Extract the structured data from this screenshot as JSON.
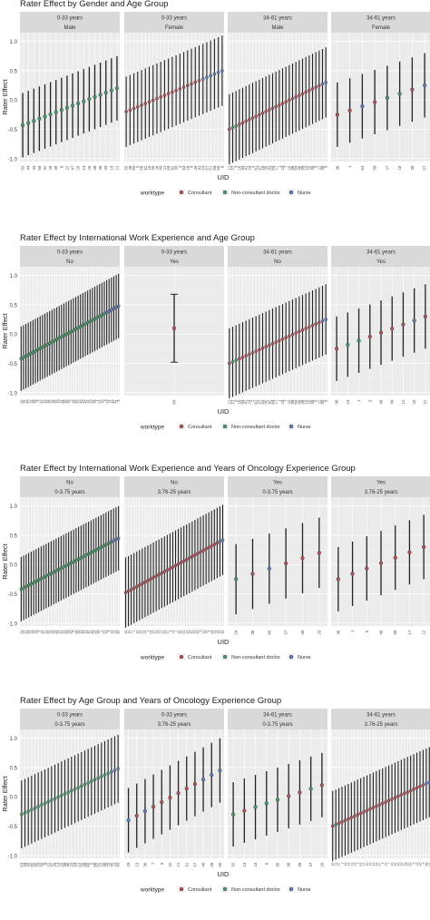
{
  "legend": {
    "title": "worktype",
    "items": [
      {
        "label": "Consultant",
        "color": "#b5525c"
      },
      {
        "label": "Non-consultant doctor",
        "color": "#4a9a6b"
      },
      {
        "label": "Nurse",
        "color": "#5f7fba"
      }
    ]
  },
  "chart_data": [
    {
      "type": "scatter",
      "title": "Rater Effect by Gender and Age Group",
      "xlabel": "UID",
      "ylabel": "Rater Effect",
      "ylim": [
        -1.05,
        1.15
      ],
      "yticks": [
        -1.0,
        -0.5,
        0.0,
        0.5,
        1.0
      ],
      "grid": true,
      "legend_position": "bottom",
      "panels": [
        {
          "strip": [
            "0-33 years",
            "Male"
          ],
          "n": 18,
          "y0": -0.43,
          "y1": 0.2,
          "halfwidth": 0.55,
          "colors": "nnnnnnnnnnnnnnnnnn",
          "ticks": [
            "53",
            "44",
            "43",
            "65",
            "32",
            "28",
            "39",
            "6",
            "22",
            "47",
            "29",
            "14",
            "25",
            "38",
            "46",
            "33",
            "19",
            "21"
          ]
        },
        {
          "strip": [
            "0-33 years",
            "Female"
          ],
          "n": 26,
          "y0": -0.2,
          "y1": 0.5,
          "halfwidth": 0.6,
          "colors": "ccccccccccccccccccccbbbbbb",
          "ticks": [
            "55",
            "48",
            "60",
            "5",
            "56",
            "52",
            "15",
            "45",
            "26",
            "40",
            "11",
            "59",
            "62",
            "30",
            "4",
            "63",
            "18",
            "9",
            "49",
            "31",
            "13",
            "57",
            "51",
            "58",
            "50",
            "8"
          ]
        },
        {
          "strip": [
            "34-61 years",
            "Male"
          ],
          "n": 30,
          "y0": -0.5,
          "y1": 0.3,
          "halfwidth": 0.6,
          "colors": "cnncccccccccccccccccccccccccbb",
          "ticks": [
            "12",
            "27",
            "3",
            "16",
            "34",
            "41",
            "24",
            "2",
            "61",
            "37",
            "10",
            "35",
            "42",
            "54",
            "17",
            "1",
            "23",
            "7",
            "20",
            "36",
            "64",
            "46",
            "39",
            "19",
            "25",
            "45",
            "5",
            "11",
            "30",
            "8"
          ]
        },
        {
          "strip": [
            "34-61 years",
            "Female"
          ],
          "n": 8,
          "y0": -0.25,
          "y1": 0.25,
          "halfwidth": 0.55,
          "colors": "ccbcnncb",
          "ticks": [
            "36",
            "1",
            "64",
            "58",
            "27",
            "18",
            "48",
            "57"
          ]
        }
      ]
    },
    {
      "type": "scatter",
      "title": "Rater Effect by International Work Experience and Age Group",
      "xlabel": "UID",
      "ylabel": "Rater Effect",
      "ylim": [
        -1.05,
        1.15
      ],
      "yticks": [
        -1.0,
        -0.5,
        0.0,
        0.5,
        1.0
      ],
      "grid": true,
      "legend_position": "bottom",
      "panels": [
        {
          "strip": [
            "0-33 years",
            "No"
          ],
          "n": 42,
          "y0": -0.42,
          "y1": 0.48,
          "halfwidth": 0.55,
          "colors": "nnnnnnnnnnnnnnnnnnnnnnnnnnnnnnnnnnnnbbbbbb",
          "ticks": [
            "53",
            "44",
            "43",
            "65",
            "32",
            "28",
            "39",
            "6",
            "22",
            "47",
            "29",
            "14",
            "25",
            "38",
            "46",
            "33",
            "19",
            "21",
            "55",
            "48",
            "60",
            "5",
            "56",
            "52",
            "15",
            "45",
            "26",
            "40",
            "11",
            "59",
            "62",
            "30",
            "4",
            "63",
            "18",
            "9",
            "49",
            "31",
            "13",
            "57",
            "51",
            "8"
          ]
        },
        {
          "strip": [
            "0-33 years",
            "Yes"
          ],
          "n": 1,
          "y0": 0.1,
          "y1": 0.1,
          "halfwidth": 0.58,
          "colors": "c",
          "ticks": [
            "65"
          ]
        },
        {
          "strip": [
            "34-61 years",
            "No"
          ],
          "n": 30,
          "y0": -0.5,
          "y1": 0.25,
          "halfwidth": 0.6,
          "colors": "cnncccccccccccccccccccccccccbb",
          "ticks": [
            "12",
            "27",
            "3",
            "16",
            "34",
            "41",
            "24",
            "2",
            "61",
            "37",
            "10",
            "35",
            "42",
            "54",
            "17",
            "1",
            "23",
            "7",
            "20",
            "36",
            "64",
            "46",
            "39",
            "19",
            "25",
            "45",
            "5",
            "11",
            "30",
            "8"
          ]
        },
        {
          "strip": [
            "34-61 years",
            "Yes"
          ],
          "n": 9,
          "y0": -0.25,
          "y1": 0.3,
          "halfwidth": 0.55,
          "colors": "cnnccccbc",
          "ticks": [
            "36",
            "24",
            "1",
            "3",
            "48",
            "39",
            "12",
            "20",
            "37"
          ]
        }
      ]
    },
    {
      "type": "scatter",
      "title": "Rater Effect by International Work Experience and Years of Oncology Experience Group",
      "xlabel": "UID",
      "ylabel": "Rater Effect",
      "ylim": [
        -1.05,
        1.15
      ],
      "yticks": [
        -1.0,
        -0.5,
        0.0,
        0.5,
        1.0
      ],
      "grid": true,
      "legend_position": "bottom",
      "panels": [
        {
          "strip": [
            "No",
            "0-3.75 years"
          ],
          "n": 40,
          "y0": -0.42,
          "y1": 0.45,
          "halfwidth": 0.55,
          "colors": "nnnnnnnnnnnnnnnnnnnnnnnnnnnnnnnnnnnnbbbb",
          "ticks": [
            "53",
            "44",
            "43",
            "65",
            "32",
            "28",
            "39",
            "6",
            "22",
            "47",
            "29",
            "14",
            "25",
            "38",
            "46",
            "33",
            "19",
            "21",
            "55",
            "48",
            "60",
            "5",
            "56",
            "52",
            "15",
            "45",
            "26",
            "40",
            "11",
            "59",
            "62",
            "30",
            "4",
            "63",
            "18",
            "9",
            "49",
            "31",
            "13",
            "57"
          ]
        },
        {
          "strip": [
            "No",
            "3.76-25 years"
          ],
          "n": 36,
          "y0": -0.48,
          "y1": 0.42,
          "halfwidth": 0.6,
          "colors": "ccccccccccccccccccccccccccccccccccbb",
          "ticks": [
            "48",
            "12",
            "27",
            "3",
            "16",
            "34",
            "41",
            "24",
            "2",
            "61",
            "37",
            "10",
            "35",
            "42",
            "54",
            "17",
            "1",
            "23",
            "7",
            "20",
            "36",
            "64",
            "46",
            "39",
            "19",
            "25",
            "45",
            "5",
            "11",
            "30",
            "8",
            "58",
            "51",
            "26",
            "49",
            "50"
          ]
        },
        {
          "strip": [
            "Yes",
            "0-3.75 years"
          ],
          "n": 6,
          "y0": -0.25,
          "y1": 0.2,
          "halfwidth": 0.6,
          "colors": "ncbccc",
          "ticks": [
            "24",
            "38",
            "65",
            "37",
            "39",
            "20"
          ]
        },
        {
          "strip": [
            "Yes",
            "3.76-25 years"
          ],
          "n": 7,
          "y0": -0.25,
          "y1": 0.3,
          "halfwidth": 0.55,
          "colors": "ccccccc",
          "ticks": [
            "36",
            "1",
            "5",
            "48",
            "39",
            "17",
            "12"
          ]
        }
      ]
    },
    {
      "type": "scatter",
      "title": "Rater Effect by Age Group and Years of Oncology Experience Group",
      "xlabel": "UID",
      "ylabel": "Rater Effect",
      "ylim": [
        -1.05,
        1.15
      ],
      "yticks": [
        -1.0,
        -0.5,
        0.0,
        0.5,
        1.0
      ],
      "grid": true,
      "legend_position": "bottom",
      "panels": [
        {
          "strip": [
            "0-33 years",
            "0-3.75 years"
          ],
          "n": 30,
          "y0": -0.3,
          "y1": 0.48,
          "halfwidth": 0.58,
          "colors": "nnnnnnnnnnnnnnnnnnnnnnnnnnnbbb",
          "ticks": [
            "53",
            "44",
            "43",
            "65",
            "32",
            "28",
            "39",
            "6",
            "22",
            "47",
            "29",
            "14",
            "25",
            "38",
            "46",
            "33",
            "19",
            "21",
            "55",
            "48",
            "60",
            "5",
            "56",
            "52",
            "15",
            "45",
            "26",
            "40",
            "11",
            "59"
          ]
        },
        {
          "strip": [
            "0-33 years",
            "3.76-25 years"
          ],
          "n": 12,
          "y0": -0.4,
          "y1": 0.45,
          "halfwidth": 0.55,
          "colors": "bcbccccccbbb",
          "ticks": [
            "43",
            "13",
            "30",
            "7",
            "9",
            "22",
            "21",
            "31",
            "57",
            "40",
            "49",
            "50"
          ]
        },
        {
          "strip": [
            "34-61 years",
            "0-3.75 years"
          ],
          "n": 9,
          "y0": -0.3,
          "y1": 0.2,
          "halfwidth": 0.55,
          "colors": "ncnnnccnc",
          "ticks": [
            "32",
            "13",
            "24",
            "6",
            "35",
            "38",
            "39",
            "37",
            "20"
          ]
        },
        {
          "strip": [
            "34-61 years",
            "3.76-25 years"
          ],
          "n": 32,
          "y0": -0.5,
          "y1": 0.25,
          "halfwidth": 0.6,
          "colors": "cnccccccccccccccccccccccccccccbb",
          "ticks": [
            "36",
            "12",
            "27",
            "3",
            "16",
            "34",
            "41",
            "24",
            "2",
            "61",
            "37",
            "10",
            "35",
            "42",
            "54",
            "17",
            "1",
            "23",
            "7",
            "20",
            "64",
            "46",
            "39",
            "19",
            "25",
            "45",
            "5",
            "11",
            "30",
            "8",
            "58",
            "51"
          ]
        }
      ]
    }
  ]
}
